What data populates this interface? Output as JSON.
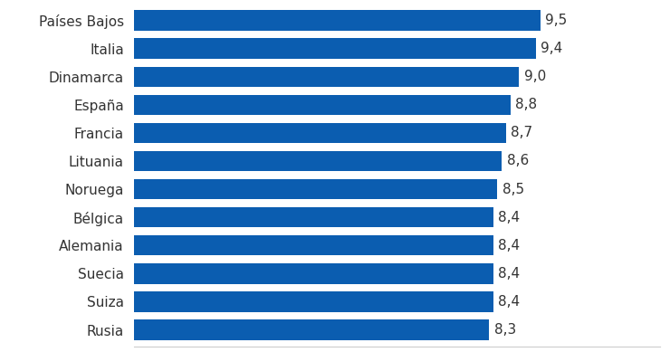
{
  "chart_data": {
    "type": "bar",
    "orientation": "horizontal",
    "categories": [
      "Países Bajos",
      "Italia",
      "Dinamarca",
      "España",
      "Francia",
      "Lituania",
      "Noruega",
      "Bélgica",
      "Alemania",
      "Suecia",
      "Suiza",
      "Rusia"
    ],
    "values": [
      9.5,
      9.4,
      9.0,
      8.8,
      8.7,
      8.6,
      8.5,
      8.4,
      8.4,
      8.4,
      8.4,
      8.3
    ],
    "value_labels": [
      "9,5",
      "9,4",
      "9,0",
      "8,8",
      "8,7",
      "8,6",
      "8,5",
      "8,4",
      "8,4",
      "8,4",
      "8,4",
      "8,3"
    ],
    "color": "#0b5db0",
    "xlim": [
      0,
      12.3
    ],
    "xticks": [],
    "data_labels": true,
    "grid": false,
    "tick_labels": "y"
  }
}
